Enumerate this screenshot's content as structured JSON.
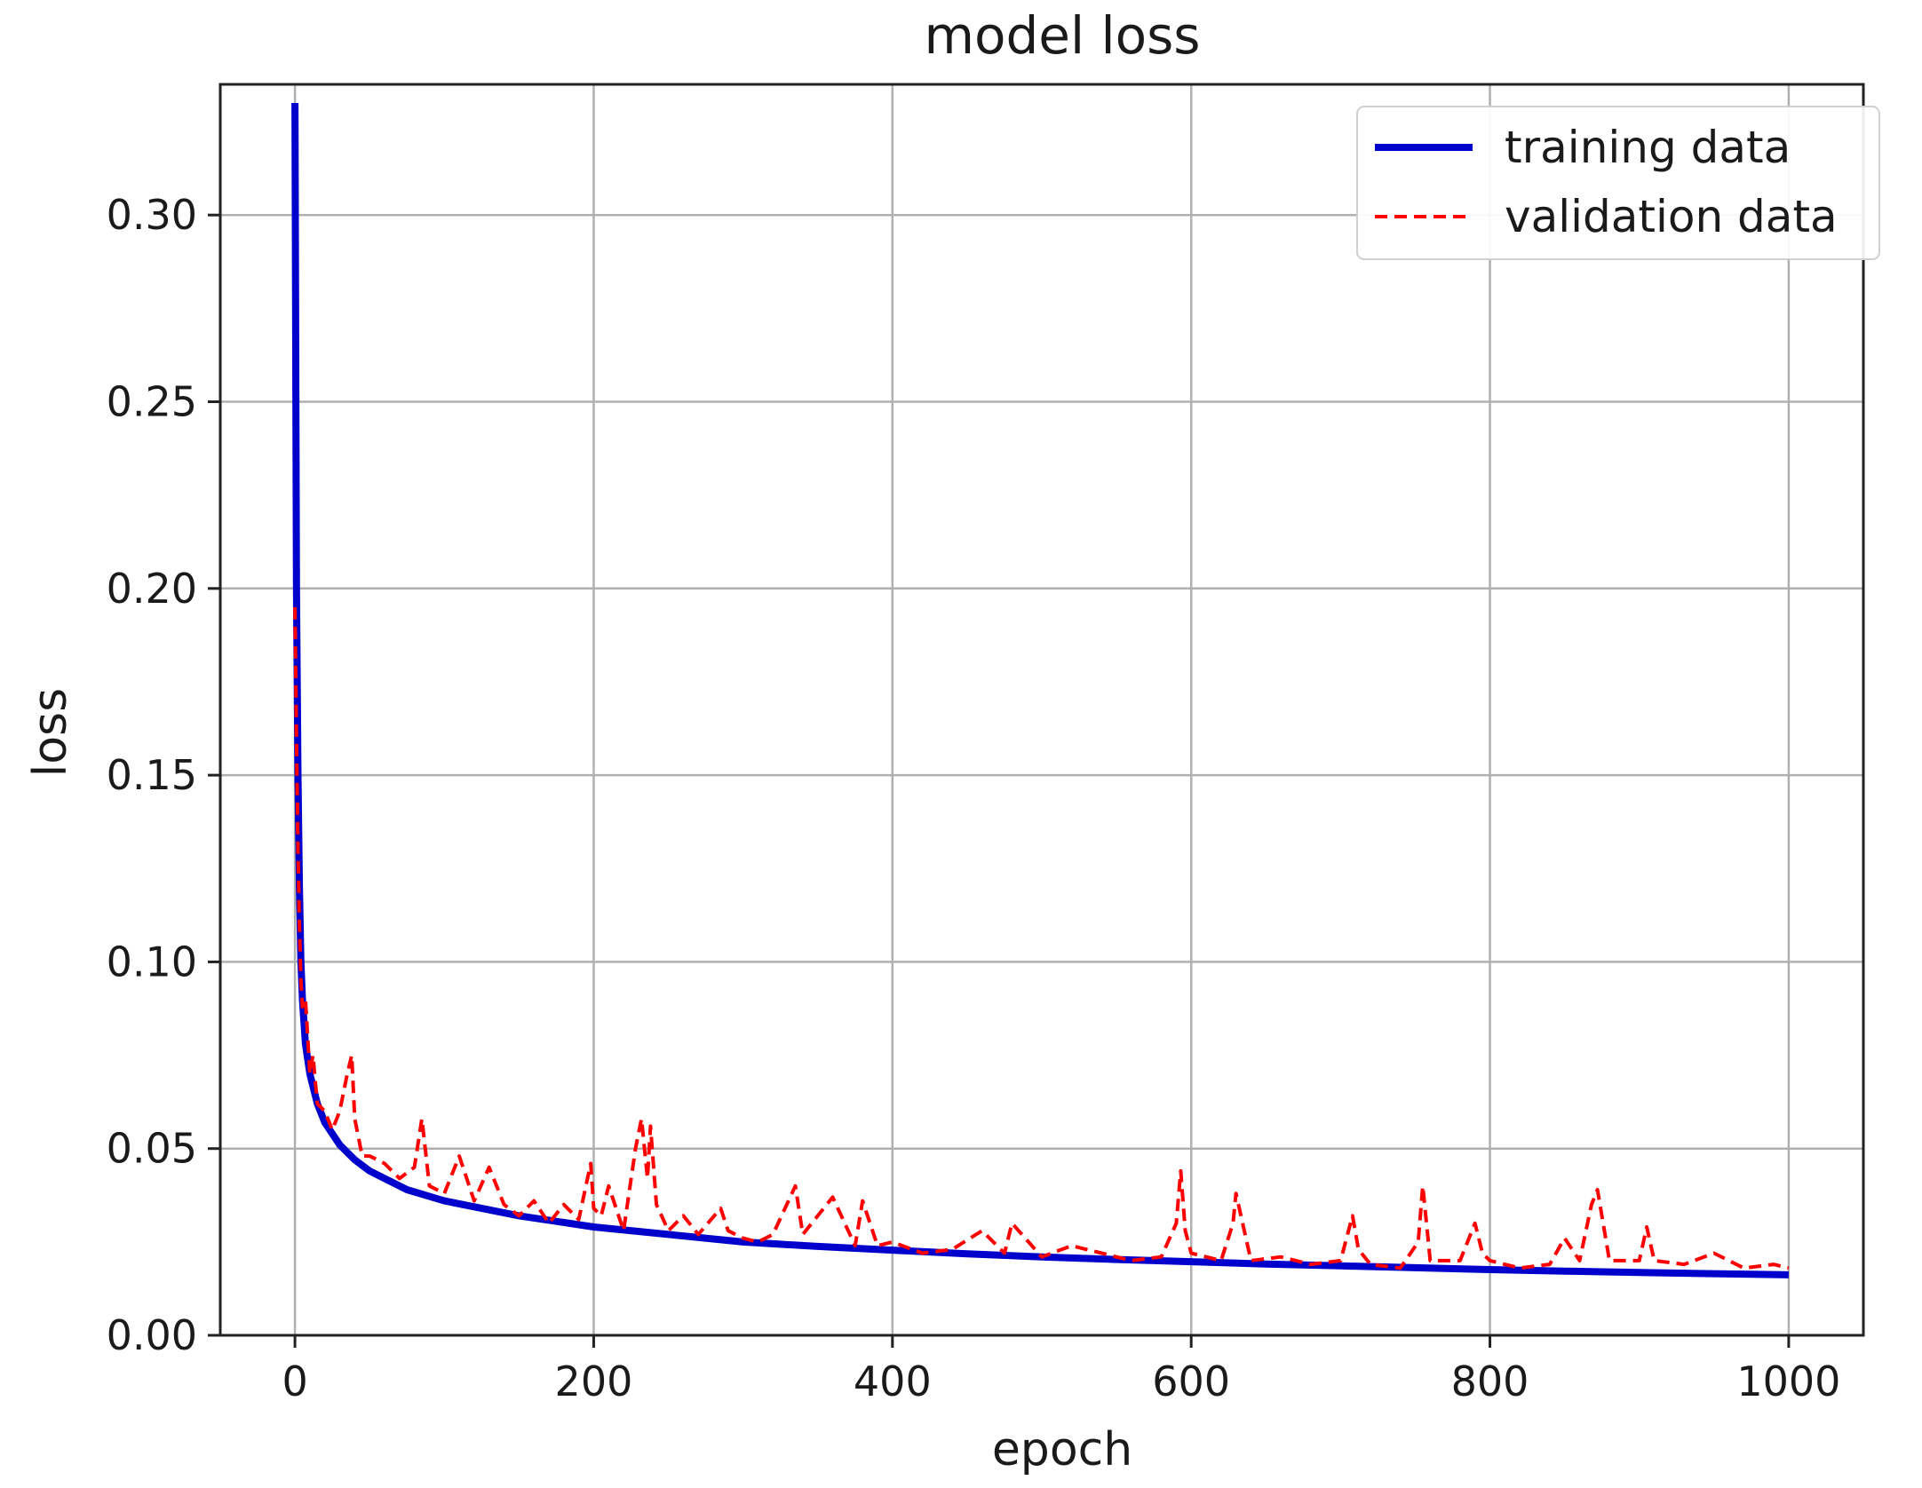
{
  "chart_data": {
    "type": "line",
    "title": "model loss",
    "xlabel": "epoch",
    "ylabel": "loss",
    "xlim": [
      -50,
      1050
    ],
    "ylim": [
      0,
      0.335
    ],
    "x_ticks": [
      0,
      200,
      400,
      600,
      800,
      1000
    ],
    "y_ticks": [
      0.0,
      0.05,
      0.1,
      0.15,
      0.2,
      0.25,
      0.3
    ],
    "x_tick_labels": [
      "0",
      "200",
      "400",
      "600",
      "800",
      "1000"
    ],
    "y_tick_labels": [
      "0.00",
      "0.05",
      "0.10",
      "0.15",
      "0.20",
      "0.25",
      "0.30"
    ],
    "grid": true,
    "legend_position": "top-right",
    "series": [
      {
        "name": "training data",
        "color": "#0000cc",
        "style": "solid",
        "x": [
          0,
          1,
          2,
          3,
          4,
          5,
          7,
          10,
          15,
          20,
          30,
          40,
          50,
          75,
          100,
          150,
          200,
          250,
          300,
          350,
          400,
          450,
          500,
          550,
          600,
          650,
          700,
          750,
          800,
          850,
          900,
          950,
          1000
        ],
        "y": [
          0.33,
          0.2,
          0.15,
          0.12,
          0.1,
          0.09,
          0.078,
          0.07,
          0.062,
          0.057,
          0.051,
          0.047,
          0.044,
          0.039,
          0.036,
          0.032,
          0.029,
          0.027,
          0.025,
          0.0238,
          0.0228,
          0.0218,
          0.021,
          0.0203,
          0.0197,
          0.0191,
          0.0186,
          0.0181,
          0.0176,
          0.0172,
          0.0168,
          0.0165,
          0.0162
        ]
      },
      {
        "name": "validation data",
        "color": "#ff0000",
        "style": "dashed",
        "x": [
          0,
          1,
          2,
          3,
          4,
          5,
          7,
          10,
          12,
          15,
          20,
          25,
          30,
          35,
          38,
          40,
          45,
          50,
          60,
          70,
          80,
          85,
          90,
          100,
          110,
          120,
          130,
          140,
          150,
          160,
          170,
          180,
          190,
          198,
          200,
          205,
          210,
          220,
          228,
          232,
          236,
          238,
          242,
          250,
          260,
          270,
          285,
          290,
          300,
          310,
          320,
          335,
          340,
          350,
          360,
          375,
          380,
          390,
          400,
          420,
          440,
          460,
          475,
          480,
          500,
          520,
          540,
          560,
          580,
          590,
          593,
          596,
          600,
          620,
          628,
          630,
          640,
          660,
          680,
          700,
          708,
          712,
          720,
          740,
          752,
          755,
          760,
          780,
          790,
          795,
          800,
          820,
          840,
          850,
          860,
          868,
          872,
          880,
          900,
          905,
          910,
          930,
          950,
          970,
          990,
          1000
        ],
        "y": [
          0.195,
          0.16,
          0.13,
          0.11,
          0.095,
          0.088,
          0.09,
          0.07,
          0.075,
          0.062,
          0.06,
          0.055,
          0.06,
          0.07,
          0.075,
          0.058,
          0.048,
          0.048,
          0.046,
          0.042,
          0.045,
          0.058,
          0.04,
          0.038,
          0.048,
          0.036,
          0.045,
          0.035,
          0.032,
          0.036,
          0.03,
          0.035,
          0.031,
          0.046,
          0.034,
          0.032,
          0.04,
          0.028,
          0.05,
          0.058,
          0.042,
          0.056,
          0.035,
          0.028,
          0.032,
          0.027,
          0.034,
          0.028,
          0.026,
          0.025,
          0.027,
          0.04,
          0.027,
          0.032,
          0.037,
          0.024,
          0.036,
          0.024,
          0.025,
          0.022,
          0.023,
          0.028,
          0.022,
          0.03,
          0.021,
          0.024,
          0.022,
          0.02,
          0.021,
          0.03,
          0.044,
          0.028,
          0.022,
          0.02,
          0.03,
          0.038,
          0.02,
          0.021,
          0.019,
          0.02,
          0.032,
          0.023,
          0.019,
          0.018,
          0.025,
          0.04,
          0.02,
          0.02,
          0.03,
          0.022,
          0.02,
          0.018,
          0.019,
          0.026,
          0.02,
          0.035,
          0.039,
          0.02,
          0.02,
          0.029,
          0.02,
          0.019,
          0.022,
          0.018,
          0.019,
          0.018
        ]
      }
    ]
  }
}
